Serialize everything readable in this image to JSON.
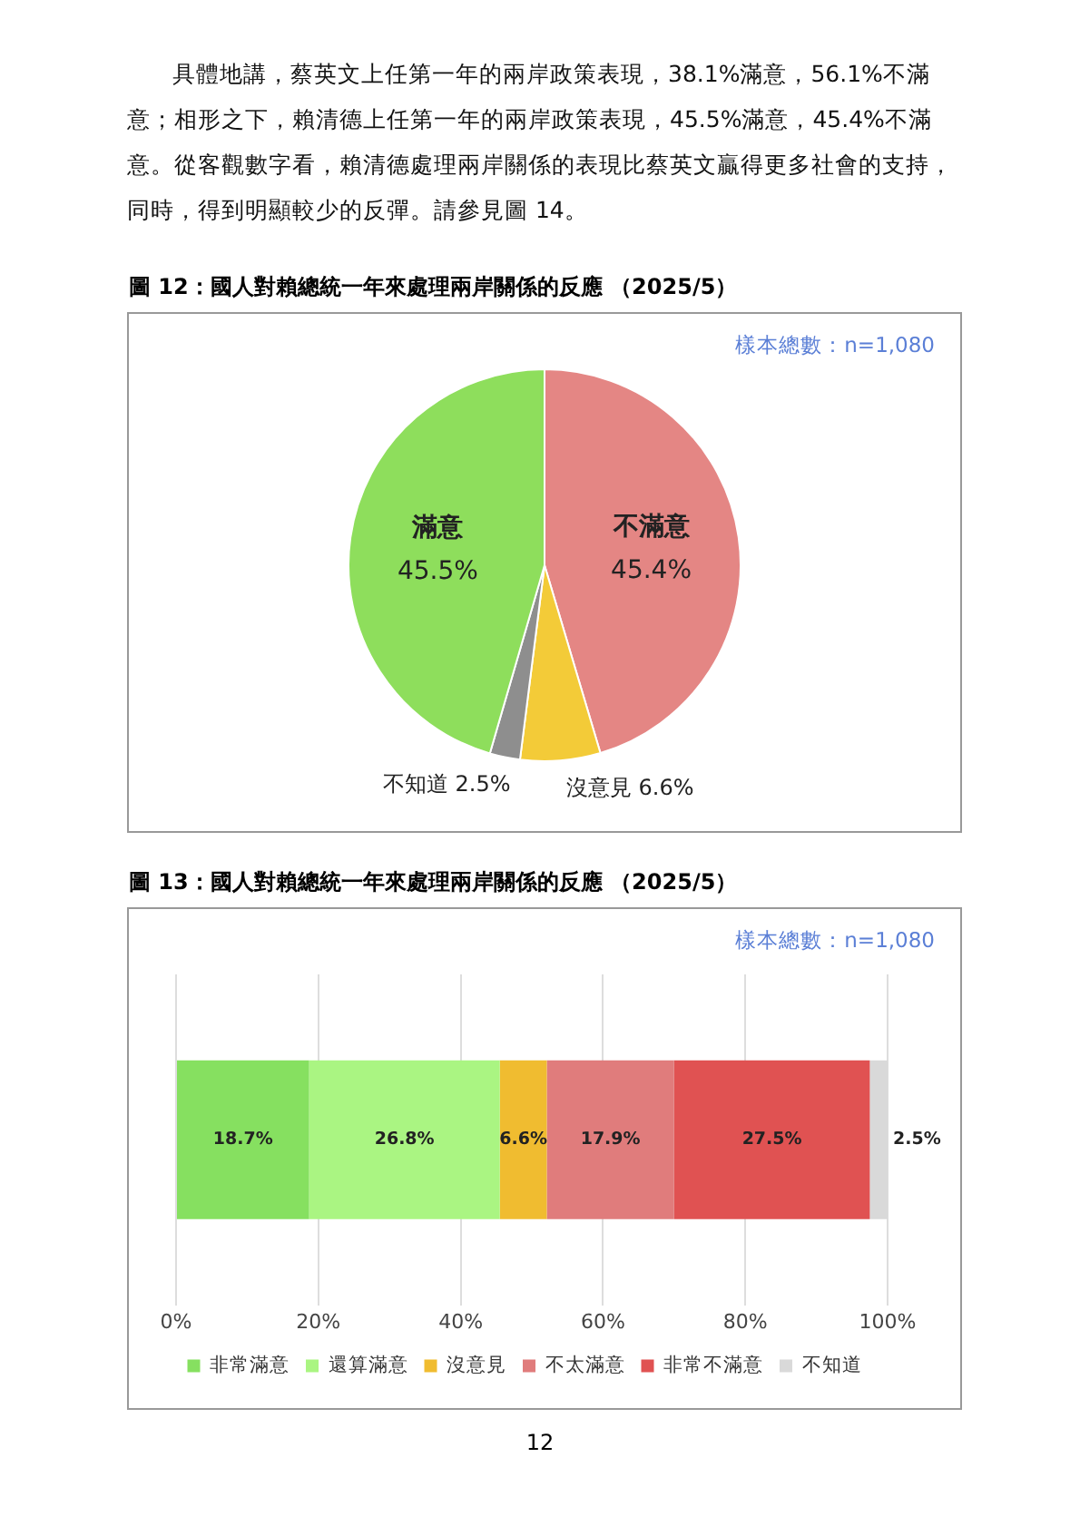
{
  "chart_data": [
    {
      "type": "pie",
      "title": "圖 12：國人對賴總統一年來處理兩岸關係的反應 （2025/5）",
      "annotations": [
        "具體地講，蔡英文上任第一年的兩岸政策表現，38.1%滿意，56.1%不滿意；相形之下，賴清德上任第一年的兩岸政策表現，45.5%滿意，45.4%不滿意。從客觀數字看，賴清德處理兩岸關係的表現比蔡英文贏得更多社會的支持，同時，得到明顯較少的反彈。請參見圖 14。",
        "樣本總數：n=1,080"
      ],
      "categories": [
        "不滿意",
        "沒意見",
        "不知道",
        "滿意"
      ],
      "values": [
        45.4,
        6.6,
        2.5,
        45.5
      ],
      "colors": [
        "#e48684",
        "#f3cb38",
        "#8e8e8e",
        "#8ede5c"
      ],
      "value_labels": [
        "45.4%",
        "6.6%",
        "2.5%",
        "45.5%"
      ]
    },
    {
      "type": "bar",
      "title": "圖 13：國人對賴總統一年來處理兩岸關係的反應 （2025/5）",
      "annotations": [
        "樣本總數：n=1,080",
        "12"
      ],
      "orientation": "horizontal",
      "stacked": true,
      "categories": [
        null
      ],
      "series": [
        {
          "name": "非常滿意",
          "color": "#86e060",
          "values": [
            18.7
          ],
          "value_labels": [
            "18.7%"
          ]
        },
        {
          "name": "還算滿意",
          "color": "#aaf582",
          "values": [
            26.8
          ],
          "value_labels": [
            "26.8%"
          ]
        },
        {
          "name": "沒意見",
          "color": "#f0bc30",
          "values": [
            6.6
          ],
          "value_labels": [
            "6.6%"
          ]
        },
        {
          "name": "不太滿意",
          "color": "#e07c7c",
          "values": [
            17.9
          ],
          "value_labels": [
            "17.9%"
          ]
        },
        {
          "name": "非常不滿意",
          "color": "#e05252",
          "values": [
            27.5
          ],
          "value_labels": [
            "27.5%"
          ]
        },
        {
          "name": "不知道",
          "color": "#d9d9d9",
          "values": [
            2.5
          ],
          "value_labels": [
            "2.5%"
          ]
        }
      ],
      "xlim": [
        0,
        100
      ],
      "xticks": [
        {
          "value": 0,
          "label": "0%"
        },
        {
          "value": 20,
          "label": "20%"
        },
        {
          "value": 40,
          "label": "40%"
        },
        {
          "value": 60,
          "label": "60%"
        },
        {
          "value": 80,
          "label": "80%"
        },
        {
          "value": 100,
          "label": "100%"
        }
      ],
      "grid": "x",
      "legend": "bottom",
      "tick_labels": "x"
    }
  ]
}
